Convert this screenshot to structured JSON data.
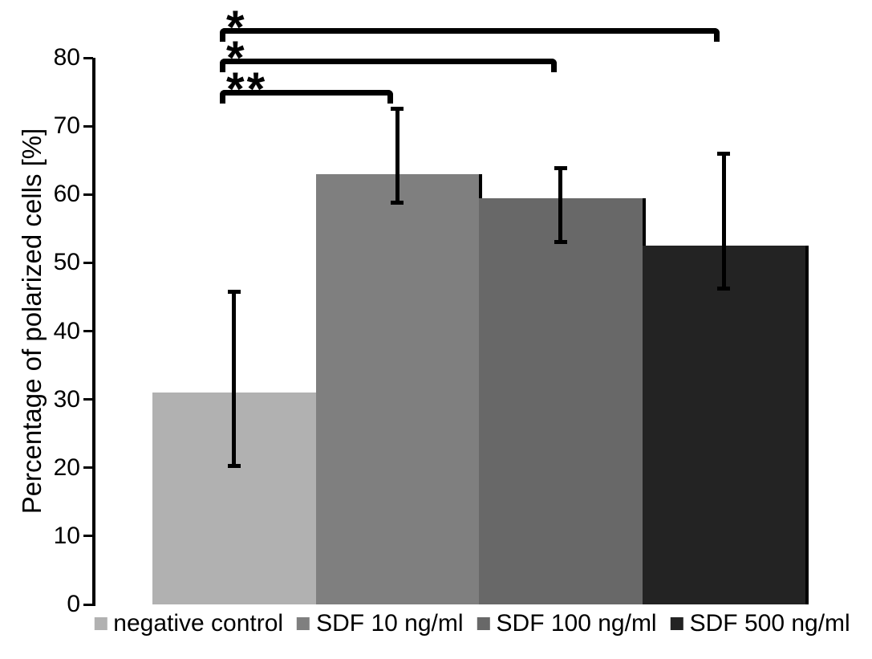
{
  "chart_data": {
    "type": "bar",
    "title": "",
    "ylabel": "Percentage of polarized cells [%]",
    "ylim": [
      0,
      80
    ],
    "yticks": [
      0,
      10,
      20,
      30,
      40,
      50,
      60,
      70,
      80
    ],
    "grid": false,
    "legend_position": "bottom",
    "categories": [
      "negative control",
      "SDF 10 ng/ml",
      "SDF 100 ng/ml",
      "SDF 500 ng/ml"
    ],
    "values": [
      31,
      63,
      59.5,
      52.5
    ],
    "bar_colors": [
      "#b1b1b1",
      "#7f7f7f",
      "#686868",
      "#232323"
    ],
    "bar_edge_color": "#000000",
    "error_bars": [
      {
        "upper": 45.8,
        "lower": 20.3
      },
      {
        "upper": 72.5,
        "lower": 58.8
      },
      {
        "upper": 63.8,
        "lower": 53.0
      },
      {
        "upper": 66.0,
        "lower": 46.2
      }
    ],
    "significance_brackets": [
      {
        "from_category": 0,
        "to_category": 3,
        "label": "*"
      },
      {
        "from_category": 0,
        "to_category": 2,
        "label": "*"
      },
      {
        "from_category": 0,
        "to_category": 1,
        "label": "**"
      }
    ]
  }
}
